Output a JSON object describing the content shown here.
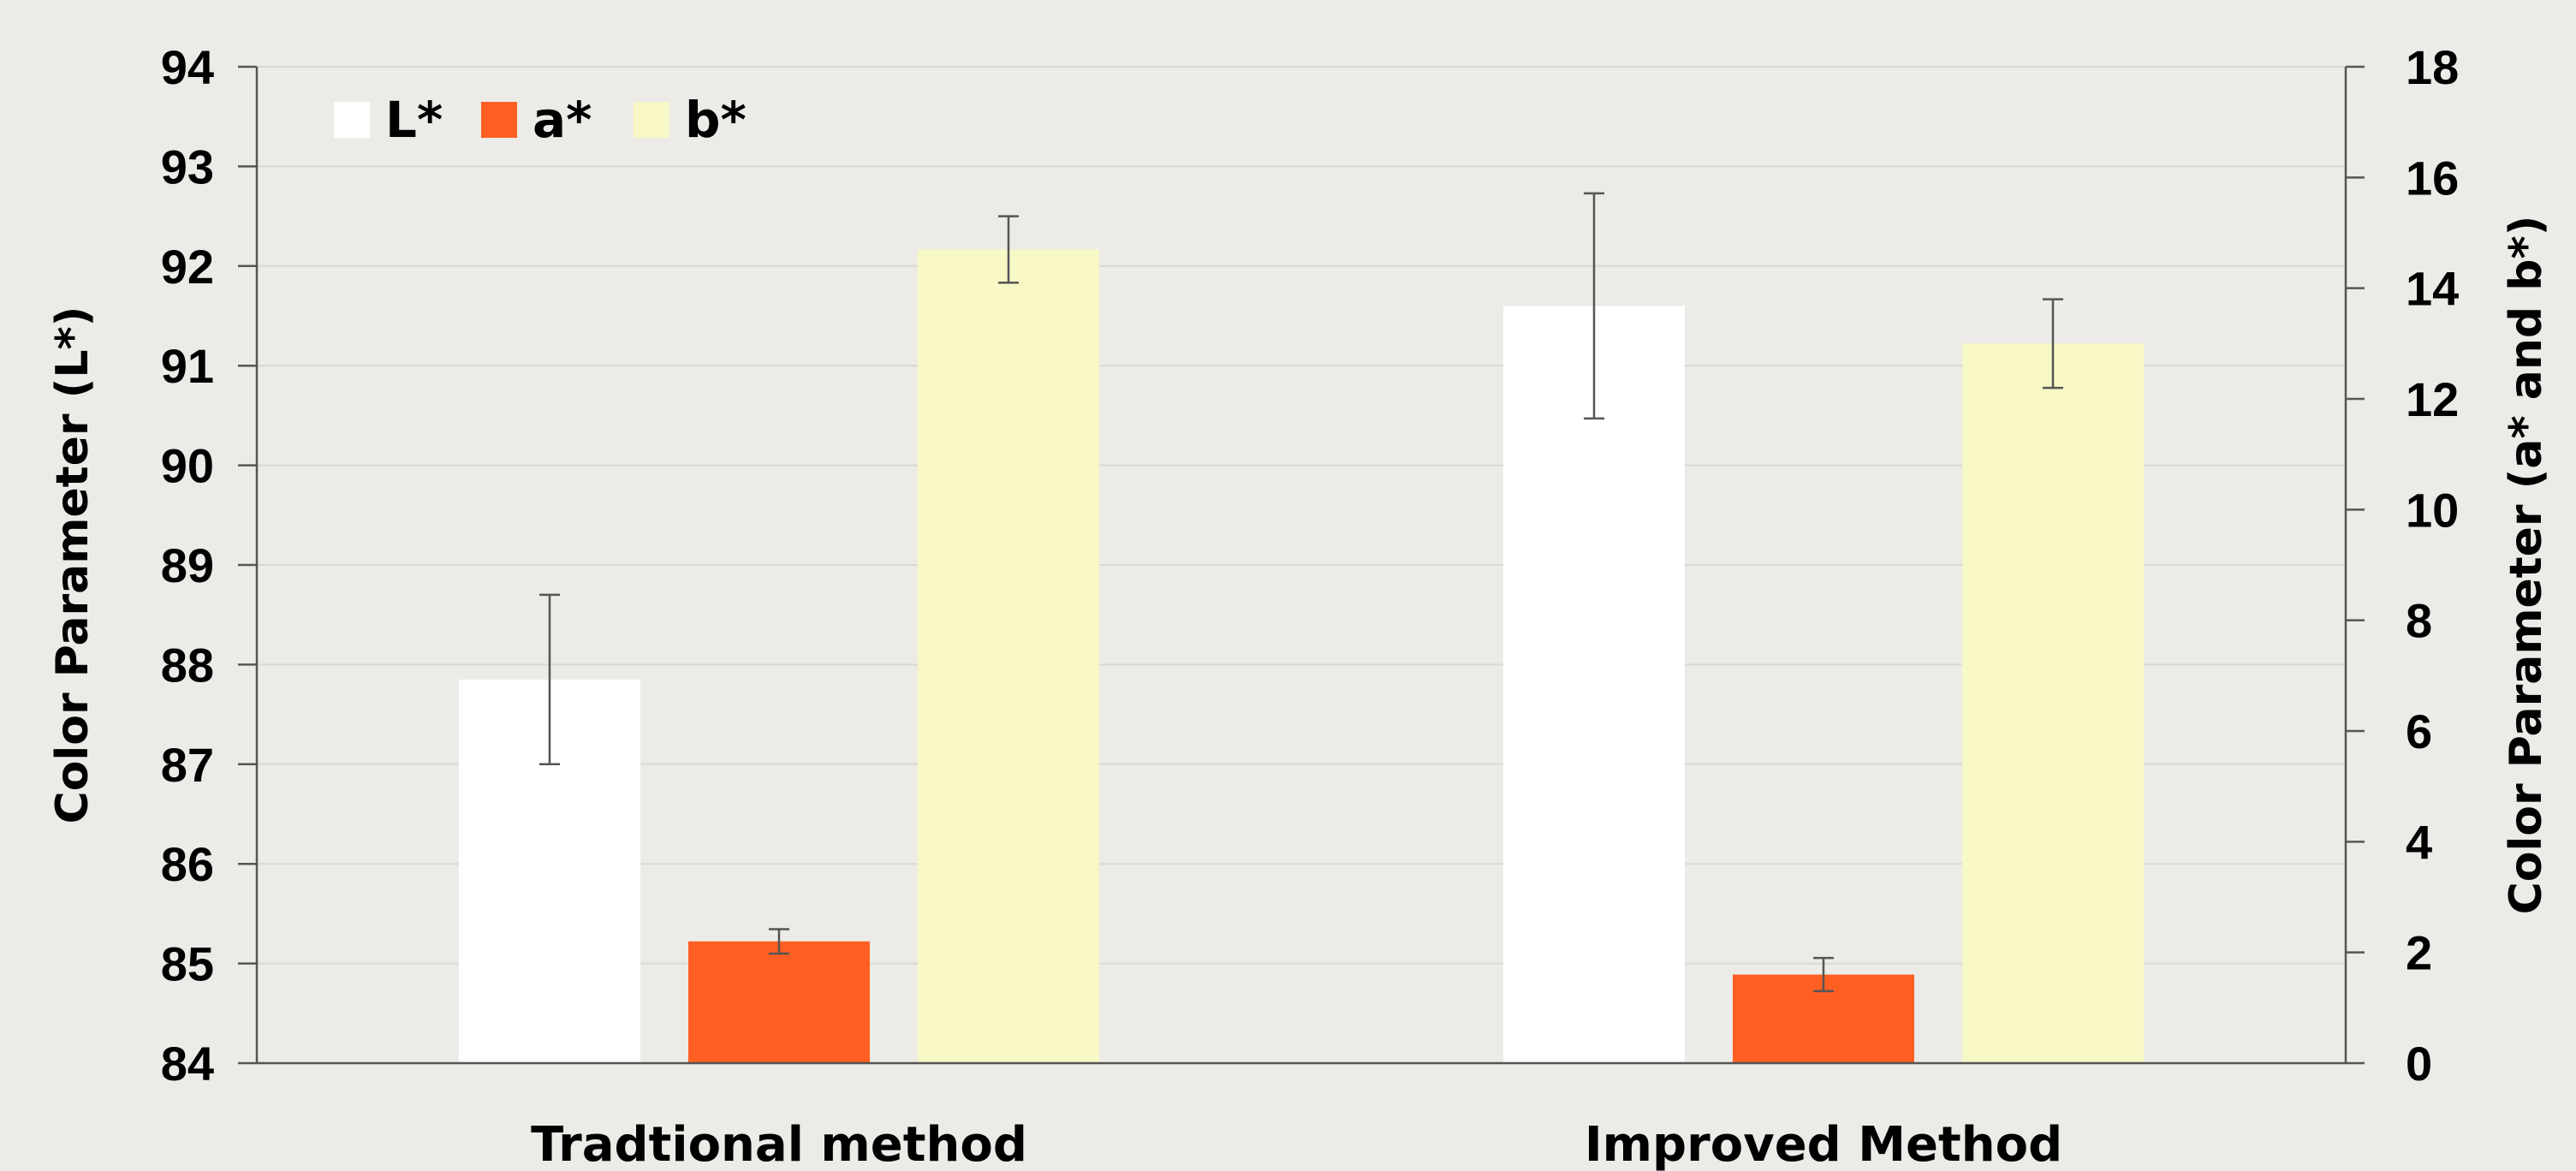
{
  "chart_data": {
    "type": "bar",
    "categories": [
      "Tradtional method",
      "Improved Method"
    ],
    "series": [
      {
        "name": "L*",
        "axis": "left",
        "color": "#ffffff",
        "values": [
          87.85,
          91.6
        ],
        "errors": [
          0.85,
          1.13
        ]
      },
      {
        "name": "a*",
        "axis": "right",
        "color": "#ff5f22",
        "values": [
          2.2,
          1.6
        ],
        "errors": [
          0.22,
          0.3
        ]
      },
      {
        "name": "b*",
        "axis": "right",
        "color": "#f8f7c6",
        "values": [
          14.7,
          13.0
        ],
        "errors": [
          0.6,
          0.8
        ]
      }
    ],
    "ylabel": "Color Parameter (L*)",
    "y2label": "Color Parameter (a* and b*)",
    "ylim": [
      84,
      94
    ],
    "y2lim": [
      0,
      18
    ],
    "yticks": [
      "84",
      "85",
      "86",
      "87",
      "88",
      "89",
      "90",
      "91",
      "92",
      "93",
      "94"
    ],
    "y2ticks": [
      "0",
      "2",
      "4",
      "6",
      "8",
      "10",
      "12",
      "14",
      "16",
      "18"
    ],
    "grid": true,
    "legend_position": "top-left"
  }
}
